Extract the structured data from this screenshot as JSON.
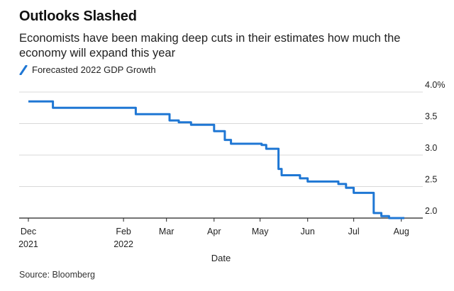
{
  "title": "Outlooks Slashed",
  "subtitle": "Economists have been making deep cuts in their estimates how much the economy will expand this year",
  "source": "Source: Bloomberg",
  "chart_data": {
    "type": "line",
    "title": "Outlooks Slashed",
    "xlabel": "Date",
    "ylabel": "",
    "ylim": [
      2.0,
      4.0
    ],
    "y_ticks": [
      {
        "value": 2.0,
        "label": "2.0"
      },
      {
        "value": 2.5,
        "label": "2.5"
      },
      {
        "value": 3.0,
        "label": "3.0"
      },
      {
        "value": 3.5,
        "label": "3.5"
      },
      {
        "value": 4.0,
        "label": "4.0%"
      }
    ],
    "xlim": [
      "2021-11-25",
      "2022-08-15"
    ],
    "x_ticks": [
      {
        "date": "2021-12-01",
        "line1": "Dec",
        "line2": "2021"
      },
      {
        "date": "2022-02-01",
        "line1": "Feb",
        "line2": "2022"
      },
      {
        "date": "2022-03-01",
        "line1": "Mar",
        "line2": ""
      },
      {
        "date": "2022-04-01",
        "line1": "Apr",
        "line2": ""
      },
      {
        "date": "2022-05-01",
        "line1": "May",
        "line2": ""
      },
      {
        "date": "2022-06-01",
        "line1": "Jun",
        "line2": ""
      },
      {
        "date": "2022-07-01",
        "line1": "Jul",
        "line2": ""
      },
      {
        "date": "2022-08-01",
        "line1": "Aug",
        "line2": ""
      }
    ],
    "grid": "horizontal",
    "legend_position": "top-left",
    "series": [
      {
        "name": "Forecasted 2022 GDP Growth",
        "color": "#1f77d4",
        "step": true,
        "points": [
          {
            "x": "2021-12-01",
            "y": 3.85
          },
          {
            "x": "2021-12-17",
            "y": 3.75
          },
          {
            "x": "2022-02-09",
            "y": 3.65
          },
          {
            "x": "2022-03-03",
            "y": 3.55
          },
          {
            "x": "2022-03-09",
            "y": 3.52
          },
          {
            "x": "2022-03-17",
            "y": 3.48
          },
          {
            "x": "2022-04-01",
            "y": 3.38
          },
          {
            "x": "2022-04-08",
            "y": 3.24
          },
          {
            "x": "2022-04-12",
            "y": 3.18
          },
          {
            "x": "2022-05-02",
            "y": 3.16
          },
          {
            "x": "2022-05-05",
            "y": 3.1
          },
          {
            "x": "2022-05-13",
            "y": 2.78
          },
          {
            "x": "2022-05-15",
            "y": 2.68
          },
          {
            "x": "2022-05-27",
            "y": 2.63
          },
          {
            "x": "2022-06-01",
            "y": 2.58
          },
          {
            "x": "2022-06-21",
            "y": 2.54
          },
          {
            "x": "2022-06-26",
            "y": 2.48
          },
          {
            "x": "2022-07-01",
            "y": 2.4
          },
          {
            "x": "2022-07-14",
            "y": 2.08
          },
          {
            "x": "2022-07-19",
            "y": 2.03
          },
          {
            "x": "2022-07-24",
            "y": 2.0
          },
          {
            "x": "2022-08-03",
            "y": 2.0
          }
        ]
      }
    ]
  }
}
